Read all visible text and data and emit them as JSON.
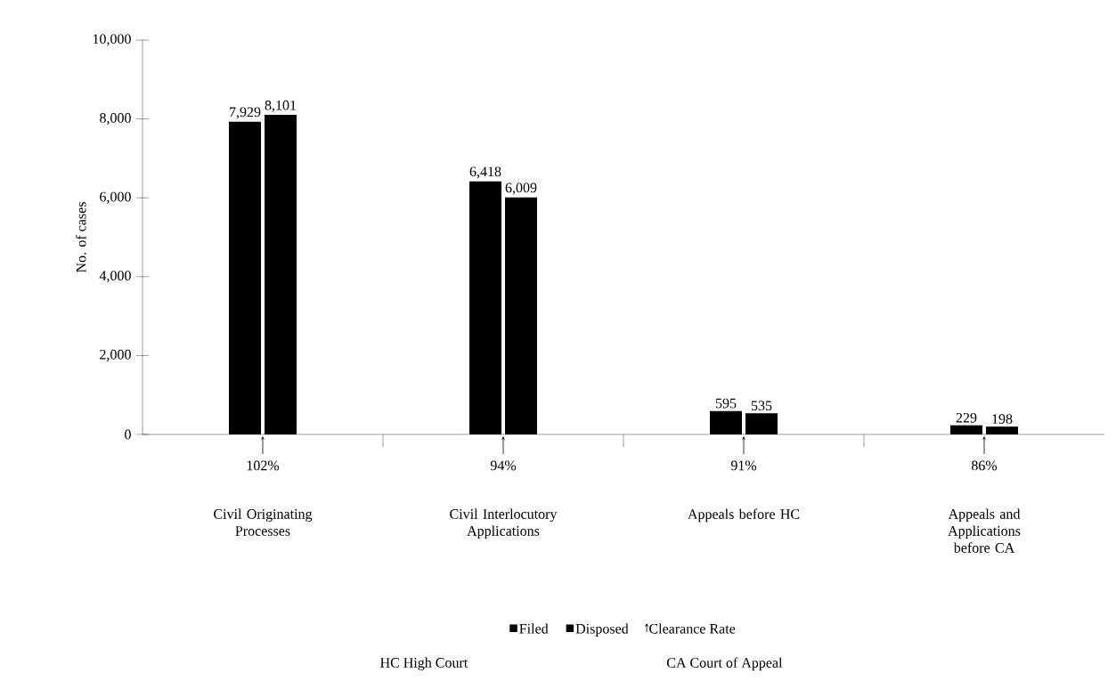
{
  "chart_data": {
    "type": "bar",
    "ylabel": "No. of cases",
    "categories": [
      "Civil Originating Processes",
      "Civil Interlocutory Applications",
      "Appeals before HC",
      "Appeals and Applications before CA"
    ],
    "series": [
      {
        "name": "Filed",
        "color": "#000000",
        "values": [
          7929,
          6418,
          595,
          229
        ],
        "value_labels": [
          "7,929",
          "6,418",
          "595",
          "229"
        ]
      },
      {
        "name": "Disposed",
        "color": "#000000",
        "values": [
          8101,
          6009,
          535,
          198
        ],
        "value_labels": [
          "8,101",
          "6,009",
          "535",
          "198"
        ]
      }
    ],
    "ylim": [
      0,
      10000
    ],
    "yticks": [
      0,
      {
        "value": 2000,
        "label": "2,000"
      },
      {
        "value": 4000,
        "label": "4,000"
      },
      {
        "value": 6000,
        "label": "6,000"
      },
      {
        "value": 8000,
        "label": "8,000"
      },
      {
        "value": 10000,
        "label": "10,000"
      }
    ],
    "legend": "bottom",
    "grid": false,
    "annotations": [
      "102%",
      "94%",
      "91%",
      "86%",
      "Clearance Rate",
      "HC  High Court",
      "CA  Court of Appeal"
    ]
  }
}
